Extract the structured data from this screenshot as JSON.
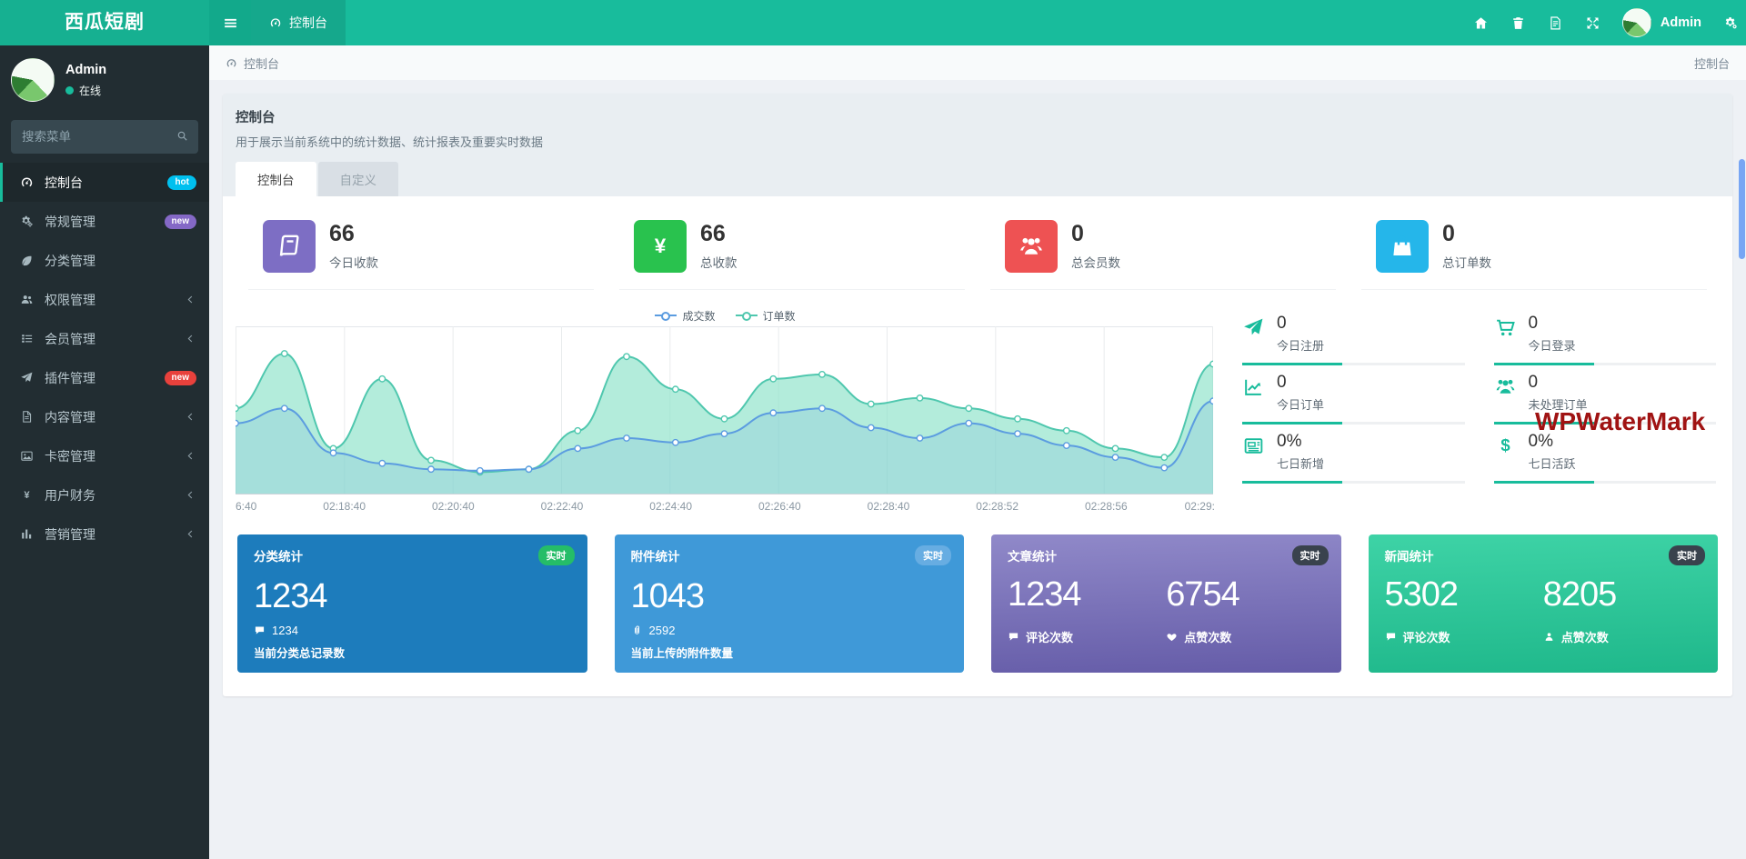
{
  "navbar": {
    "brand": "西瓜短剧",
    "menu_icon": "menu-icon",
    "tab_icon": "dashboard-icon",
    "tab_label": "控制台",
    "right_icons": [
      "home-icon",
      "trash-icon",
      "changelog-icon",
      "fullscreen-icon"
    ],
    "username": "Admin",
    "settings_icon": "settings-icon"
  },
  "sidebar": {
    "user_name": "Admin",
    "user_status": "在线",
    "search_placeholder": "搜索菜单",
    "search_icon": "search-icon",
    "arrow_icon": "chevron-left-icon",
    "items": [
      {
        "label": "控制台",
        "icon": "dashboard-icon",
        "badge": "hot",
        "badge_color": "#00c0ef",
        "active": true
      },
      {
        "label": "常规管理",
        "icon": "cogs-icon",
        "badge": "new",
        "badge_color": "#8468c6"
      },
      {
        "label": "分类管理",
        "icon": "leaf-icon"
      },
      {
        "label": "权限管理",
        "icon": "users-icon",
        "arrow": true
      },
      {
        "label": "会员管理",
        "icon": "list-icon",
        "arrow": true
      },
      {
        "label": "插件管理",
        "icon": "rocket-icon",
        "badge": "new",
        "badge_color": "#e8413c"
      },
      {
        "label": "内容管理",
        "icon": "file-icon",
        "arrow": true
      },
      {
        "label": "卡密管理",
        "icon": "image-icon",
        "arrow": true
      },
      {
        "label": "用户财务",
        "icon": "yen-icon",
        "arrow": true
      },
      {
        "label": "营销管理",
        "icon": "chart-bar-icon",
        "arrow": true
      }
    ]
  },
  "breadcrumb": {
    "icon": "dashboard-icon",
    "left": "控制台",
    "right": "控制台"
  },
  "panel": {
    "title": "控制台",
    "subtitle": "用于展示当前系统中的统计数据、统计报表及重要实时数据",
    "tabs": [
      {
        "label": "控制台",
        "active": true
      },
      {
        "label": "自定义",
        "active": false
      }
    ]
  },
  "stats": [
    {
      "value": "66",
      "label": "今日收款",
      "icon": "book-icon",
      "color": "#7d6ec4"
    },
    {
      "value": "66",
      "label": "总收款",
      "icon": "yen-icon",
      "color": "#29c24e"
    },
    {
      "value": "0",
      "label": "总会员数",
      "icon": "user-group-icon",
      "color": "#ee5253"
    },
    {
      "value": "0",
      "label": "总订单数",
      "icon": "shopping-bag-icon",
      "color": "#25b6ea"
    }
  ],
  "chart_data": {
    "type": "area",
    "title": "",
    "x_labels": [
      "6:40",
      "02:18:40",
      "02:20:40",
      "02:22:40",
      "02:24:40",
      "02:26:40",
      "02:28:40",
      "02:28:52",
      "02:28:56",
      "02:29:"
    ],
    "ylim": [
      0,
      100
    ],
    "grid": true,
    "legend_position": "top-center",
    "series": [
      {
        "name": "成交数",
        "type": "line",
        "color": "#5b9ce0",
        "fill": "rgba(91,156,224,0.16)",
        "values": [
          45,
          55,
          25,
          18,
          14,
          13,
          14,
          28,
          35,
          32,
          38,
          52,
          55,
          42,
          35,
          45,
          38,
          30,
          22,
          15,
          60
        ]
      },
      {
        "name": "订单数",
        "type": "area",
        "color": "#4fc7ae",
        "fill": "rgba(138,226,199,0.65)",
        "values": [
          55,
          92,
          28,
          75,
          20,
          12,
          14,
          40,
          90,
          68,
          48,
          75,
          78,
          58,
          62,
          55,
          48,
          40,
          28,
          22,
          85
        ]
      }
    ]
  },
  "mini_stats": [
    {
      "value": "0",
      "label": "今日注册",
      "icon": "rocket-icon"
    },
    {
      "value": "0",
      "label": "今日登录",
      "icon": "cart-icon"
    },
    {
      "value": "0",
      "label": "今日订单",
      "icon": "trend-icon"
    },
    {
      "value": "0",
      "label": "未处理订单",
      "icon": "user-group-icon"
    },
    {
      "value": "0%",
      "label": "七日新增",
      "icon": "news-icon"
    },
    {
      "value": "0%",
      "label": "七日活跃",
      "icon": "dollar-icon"
    }
  ],
  "cards": [
    {
      "title": "分类统计",
      "badge": "实时",
      "badge_color": "#25bd68",
      "color": "#1d7cbc",
      "value": "1234",
      "meta_icon": "comment-icon",
      "meta": "1234",
      "desc": "当前分类总记录数"
    },
    {
      "title": "附件统计",
      "badge": "实时",
      "badge_color": "#67ade2",
      "color": "#3f99d8",
      "value": "1043",
      "meta_icon": "attachment-icon",
      "meta": "2592",
      "desc": "当前上传的附件数量"
    },
    {
      "title": "文章统计",
      "badge": "实时",
      "badge_color": "#39424d",
      "color": "#766dba",
      "cols": [
        {
          "value": "1234",
          "icon": "comment-icon",
          "label": "评论次数"
        },
        {
          "value": "6754",
          "icon": "heart-icon",
          "label": "点赞次数"
        }
      ]
    },
    {
      "title": "新闻统计",
      "badge": "实时",
      "badge_color": "#39424d",
      "color": "#2cc598",
      "cols": [
        {
          "value": "5302",
          "icon": "comment-icon",
          "label": "评论次数"
        },
        {
          "value": "8205",
          "icon": "user-icon",
          "label": "点赞次数"
        }
      ]
    }
  ],
  "watermark": "WPWaterMark",
  "colors": {
    "navbar": "#18bc9c",
    "sidebar": "#222d32",
    "sidebar_active_border": "#18bc9c",
    "page_background": "#eef1f5",
    "mini_accent": "#18bc9c",
    "scrollbar": "#78a6f4",
    "watermark": "#a01313"
  }
}
